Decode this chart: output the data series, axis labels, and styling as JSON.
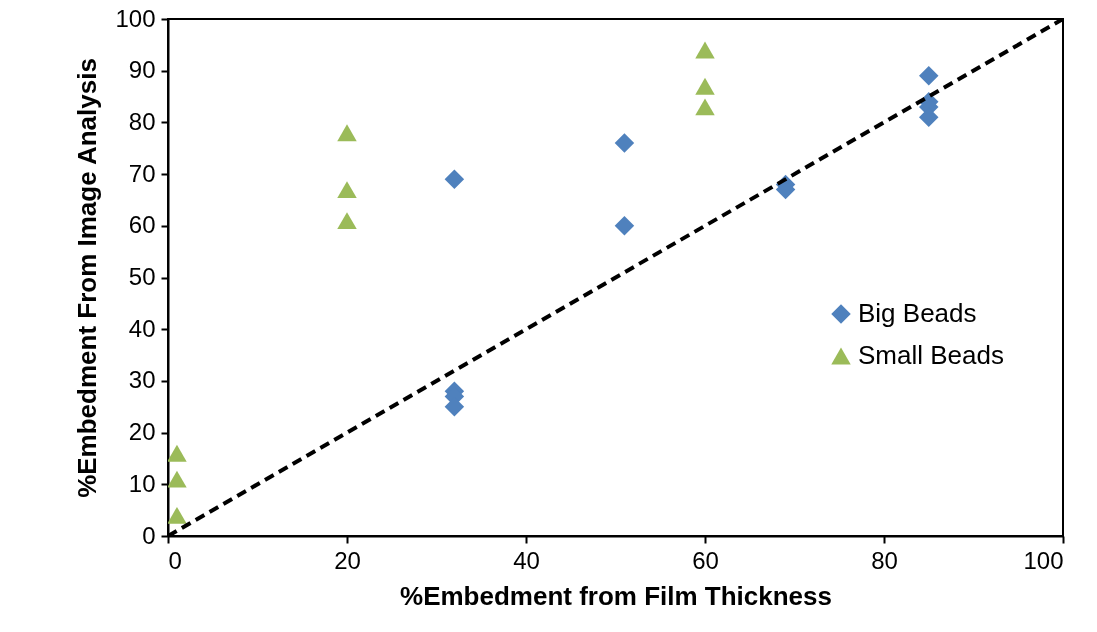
{
  "chart_data": {
    "type": "scatter",
    "xlabel": "%Embedment from Film Thickness",
    "ylabel": "%Embedment From Image Analysis",
    "xlim": [
      0,
      100
    ],
    "xticks": [
      0,
      20,
      40,
      60,
      80,
      100
    ],
    "ylim": [
      0,
      100
    ],
    "yticks": [
      0,
      10,
      20,
      30,
      40,
      50,
      60,
      70,
      80,
      90,
      100
    ],
    "grid": false,
    "legend": "right",
    "series": [
      {
        "name": "Big Beads",
        "marker": "diamond",
        "color": "#4f81bd",
        "x": [
          32,
          32,
          32,
          32,
          51,
          51,
          69,
          69,
          85,
          85,
          85,
          85
        ],
        "values": [
          69,
          28,
          27,
          25,
          76,
          60,
          68,
          67,
          89,
          84,
          83,
          81
        ]
      },
      {
        "name": "Small Beads",
        "marker": "triangle",
        "color": "#9bbb59",
        "x": [
          1,
          1,
          1,
          20,
          20,
          20,
          60,
          60,
          60
        ],
        "values": [
          16,
          11,
          4,
          78,
          67,
          61,
          94,
          87,
          83
        ]
      },
      {
        "type": "line",
        "color": "#000000",
        "line_style": "dashed",
        "marker": "none",
        "x": [
          0,
          100
        ],
        "values": [
          0,
          100
        ]
      }
    ]
  }
}
